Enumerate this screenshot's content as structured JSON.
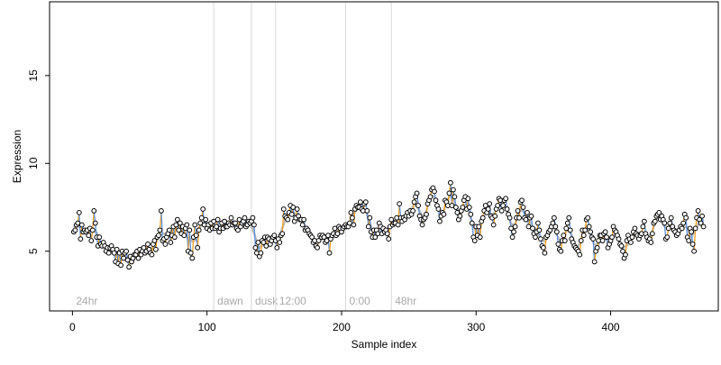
{
  "chart_data": {
    "type": "line",
    "xlabel": "Sample index",
    "ylabel": "Expression",
    "xlim": [
      -17,
      480
    ],
    "ylim": [
      1.6,
      19.2
    ],
    "x_ticks": [
      0,
      100,
      200,
      300,
      400
    ],
    "y_ticks": [
      5,
      10,
      15
    ],
    "grid": false,
    "colors": {
      "axes": "#000000",
      "vlines": "#d9d9d9",
      "vline_labels": "#a9a9a9",
      "trend_line": "#bdbdbd",
      "increase_segment": "#f4a020",
      "decrease_segment": "#5b8fd9",
      "point_fill": "#ffffff",
      "point_stroke": "#000000"
    },
    "vertical_markers": [
      {
        "x": 0,
        "label": "24hr"
      },
      {
        "x": 105,
        "label": "dawn"
      },
      {
        "x": 133,
        "label": "dusk"
      },
      {
        "x": 151,
        "label": "12:00"
      },
      {
        "x": 203,
        "label": "0:00"
      },
      {
        "x": 237,
        "label": "48hr"
      }
    ],
    "series": [
      {
        "x_start": 1,
        "x_step": 1,
        "values": [
          6.1,
          6.2,
          6.5,
          6.6,
          7.2,
          5.7,
          6.5,
          6.1,
          6.2,
          6.1,
          6.2,
          5.9,
          6.3,
          5.6,
          6.2,
          7.3,
          6.6,
          5.8,
          5.3,
          5.8,
          5.4,
          5.3,
          5.5,
          5.3,
          5.0,
          5.2,
          4.9,
          5.2,
          5.3,
          5.1,
          4.9,
          4.4,
          5.1,
          4.3,
          4.9,
          4.2,
          5.0,
          4.6,
          4.9,
          5.0,
          4.5,
          4.1,
          4.7,
          4.4,
          4.6,
          4.8,
          4.8,
          5.0,
          4.6,
          5.1,
          4.8,
          5.0,
          5.2,
          4.9,
          5.0,
          5.4,
          5.1,
          4.9,
          4.8,
          5.4,
          5.6,
          5.1,
          5.8,
          5.9,
          6.2,
          7.3,
          5.6,
          5.7,
          5.4,
          5.8,
          6.0,
          6.2,
          5.5,
          5.9,
          6.4,
          5.8,
          6.5,
          6.8,
          6.2,
          6.6,
          6.0,
          6.4,
          5.9,
          6.3,
          6.5,
          5.0,
          6.2,
          4.9,
          4.6,
          5.8,
          6.5,
          5.9,
          5.2,
          6.2,
          6.6,
          6.9,
          7.4,
          6.5,
          6.8,
          6.3,
          6.5,
          6.2,
          6.6,
          6.3,
          6.7,
          6.3,
          6.4,
          6.8,
          6.1,
          6.3,
          6.6,
          6.3,
          6.7,
          6.4,
          6.4,
          6.6,
          6.5,
          6.9,
          6.5,
          6.6,
          6.6,
          6.3,
          6.2,
          6.8,
          6.4,
          6.6,
          6.7,
          6.9,
          6.4,
          6.5,
          6.7,
          6.6,
          6.7,
          6.9,
          6.5,
          5.2,
          4.9,
          5.5,
          4.7,
          4.9,
          5.6,
          5.5,
          5.8,
          5.3,
          5.8,
          5.7,
          5.4,
          5.6,
          5.8,
          5.9,
          5.6,
          5.2,
          5.7,
          5.5,
          5.9,
          6.0,
          7.4,
          7.0,
          6.9,
          6.8,
          7.2,
          7.6,
          7.1,
          7.5,
          6.7,
          6.9,
          7.4,
          7.0,
          6.8,
          6.8,
          6.5,
          6.8,
          6.2,
          6.3,
          6.2,
          6.0,
          5.9,
          5.8,
          5.5,
          5.6,
          5.3,
          5.2,
          5.6,
          5.9,
          5.8,
          5.9,
          5.8,
          5.5,
          5.6,
          5.9,
          4.9,
          5.7,
          5.9,
          6.0,
          6.3,
          5.9,
          6.0,
          6.4,
          6.3,
          6.1,
          6.3,
          6.4,
          6.5,
          6.4,
          6.4,
          6.6,
          7.2,
          6.9,
          6.5,
          7.4,
          7.6,
          7.5,
          7.5,
          7.8,
          7.4,
          7.3,
          7.7,
          7.8,
          7.3,
          6.4,
          6.9,
          6.1,
          5.8,
          6.2,
          5.8,
          6.2,
          6.0,
          6.6,
          6.4,
          6.0,
          6.3,
          6.1,
          6.2,
          6.0,
          5.7,
          6.4,
          6.8,
          6.5,
          6.6,
          6.6,
          6.9,
          6.5,
          7.7,
          6.9,
          6.7,
          6.9,
          6.8,
          7.0,
          7.2,
          7.0,
          7.3,
          7.1,
          7.3,
          7.8,
          8.1,
          8.3,
          7.6,
          7.0,
          6.8,
          6.5,
          6.8,
          6.9,
          7.1,
          7.7,
          7.9,
          8.1,
          8.5,
          8.6,
          8.4,
          7.9,
          7.6,
          7.4,
          6.7,
          7.0,
          7.2,
          7.1,
          7.9,
          7.8,
          7.6,
          8.3,
          8.9,
          7.6,
          8.5,
          8.1,
          7.5,
          7.2,
          6.8,
          7.0,
          7.3,
          7.5,
          7.9,
          8.1,
          7.4,
          8.0,
          7.5,
          7.1,
          6.6,
          5.8,
          5.6,
          6.4,
          5.9,
          6.4,
          5.8,
          6.7,
          6.9,
          7.3,
          7.6,
          7.2,
          7.4,
          7.7,
          7.0,
          6.9,
          6.5,
          7.0,
          7.4,
          7.6,
          8.0,
          7.9,
          7.3,
          7.6,
          7.9,
          8.0,
          7.4,
          7.1,
          6.9,
          6.3,
          5.8,
          6.1,
          6.4,
          6.9,
          7.3,
          6.9,
          7.8,
          7.9,
          7.5,
          6.9,
          6.8,
          7.2,
          6.4,
          6.9,
          7.0,
          6.3,
          6.0,
          5.8,
          6.1,
          6.6,
          6.2,
          5.7,
          5.3,
          5.2,
          4.9,
          5.8,
          5.9,
          6.1,
          6.2,
          6.4,
          6.6,
          6.9,
          6.4,
          6.1,
          5.4,
          5.1,
          5.0,
          5.6,
          5.9,
          5.6,
          6.3,
          6.6,
          6.9,
          6.2,
          5.7,
          5.5,
          5.3,
          5.2,
          5.1,
          5.0,
          4.8,
          5.6,
          6.2,
          5.9,
          6.2,
          6.8,
          6.9,
          6.4,
          6.1,
          5.8,
          5.7,
          4.4,
          5.0,
          5.2,
          5.6,
          5.9,
          5.9,
          5.6,
          6.0,
          6.1,
          5.8,
          5.2,
          5.4,
          5.6,
          5.8,
          6.4,
          6.2,
          6.1,
          5.9,
          5.7,
          5.4,
          5.3,
          5.0,
          4.6,
          4.8,
          5.6,
          5.9,
          5.7,
          5.5,
          5.8,
          6.1,
          6.3,
          6.0,
          5.9,
          5.7,
          5.9,
          6.0,
          6.4,
          6.7,
          6.0,
          5.8,
          5.6,
          5.7,
          5.5,
          6.0,
          6.6,
          6.7,
          7.0,
          7.1,
          7.2,
          6.8,
          7.0,
          6.8,
          6.6,
          5.7,
          5.8,
          6.3,
          6.6,
          6.9,
          6.4,
          6.2,
          6.1,
          5.9,
          6.0,
          6.2,
          6.4,
          6.3,
          6.6,
          7.1,
          6.9,
          5.8,
          5.6,
          6.3,
          6.1,
          5.4,
          5.0,
          6.3,
          6.9,
          7.3,
          6.8,
          6.6,
          7.0,
          6.4
        ]
      }
    ]
  }
}
